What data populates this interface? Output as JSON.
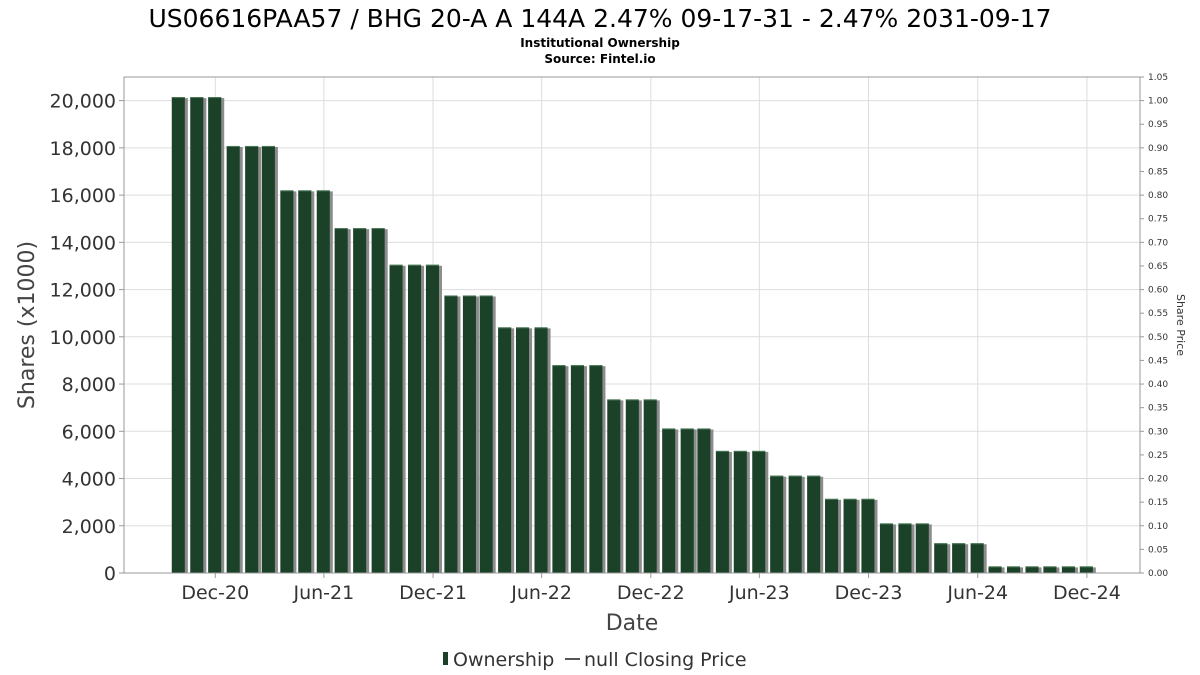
{
  "chart_data": {
    "type": "bar",
    "title": "US06616PAA57 / BHG 20-A A 144A 2.47% 09-17-31 - 2.47% 2031-09-17",
    "subtitle_lines": [
      "Institutional Ownership",
      "Source: Fintel.io"
    ],
    "xlabel": "Date",
    "ylabel": "Shares (x1000)",
    "y2label": "Share Price",
    "ylim": [
      0,
      21000
    ],
    "y2lim": [
      0,
      1.05
    ],
    "yticks": [
      0,
      2000,
      4000,
      6000,
      8000,
      10000,
      12000,
      14000,
      16000,
      18000,
      20000
    ],
    "ytick_labels": [
      "0",
      "2,000",
      "4,000",
      "6,000",
      "8,000",
      "10,000",
      "12,000",
      "14,000",
      "16,000",
      "18,000",
      "20,000"
    ],
    "y2ticks": [
      0,
      0.05,
      0.1,
      0.15,
      0.2,
      0.25,
      0.3,
      0.35,
      0.4,
      0.45,
      0.5,
      0.55,
      0.6,
      0.65,
      0.7,
      0.75,
      0.8,
      0.85,
      0.9,
      0.95,
      1.0,
      1.05
    ],
    "y2tick_labels": [
      "0.00",
      "0.05",
      "0.10",
      "0.15",
      "0.20",
      "0.25",
      "0.30",
      "0.35",
      "0.40",
      "0.45",
      "0.50",
      "0.55",
      "0.60",
      "0.65",
      "0.70",
      "0.75",
      "0.80",
      "0.85",
      "0.90",
      "0.95",
      "1.00",
      "1.05"
    ],
    "xlim": [
      "2020-07-01",
      "2025-02-28"
    ],
    "xticks": [
      {
        "date": "2020-12-01",
        "label": "Dec-20"
      },
      {
        "date": "2021-06-01",
        "label": "Jun-21"
      },
      {
        "date": "2021-12-01",
        "label": "Dec-21"
      },
      {
        "date": "2022-06-01",
        "label": "Jun-22"
      },
      {
        "date": "2022-12-01",
        "label": "Dec-22"
      },
      {
        "date": "2023-06-01",
        "label": "Jun-23"
      },
      {
        "date": "2023-12-01",
        "label": "Dec-23"
      },
      {
        "date": "2024-06-01",
        "label": "Jun-24"
      },
      {
        "date": "2024-12-01",
        "label": "Dec-24"
      }
    ],
    "grid": true,
    "legend_position": "bottom-center",
    "colors": {
      "bar": "#1b4228",
      "bar_shadow": "#8c8c8c",
      "grid": "#dddddd",
      "axis": "#999999"
    },
    "series": [
      {
        "name": "Ownership",
        "x": [
          "2020-09-30",
          "2020-10-31",
          "2020-11-30",
          "2020-12-31",
          "2021-01-31",
          "2021-02-28",
          "2021-03-31",
          "2021-04-30",
          "2021-05-31",
          "2021-06-30",
          "2021-07-31",
          "2021-08-31",
          "2021-09-30",
          "2021-10-31",
          "2021-11-30",
          "2021-12-31",
          "2022-01-31",
          "2022-02-28",
          "2022-03-31",
          "2022-04-30",
          "2022-05-31",
          "2022-06-30",
          "2022-07-31",
          "2022-08-31",
          "2022-09-30",
          "2022-10-31",
          "2022-11-30",
          "2022-12-31",
          "2023-01-31",
          "2023-02-28",
          "2023-03-31",
          "2023-04-30",
          "2023-05-31",
          "2023-06-30",
          "2023-07-31",
          "2023-08-31",
          "2023-09-30",
          "2023-10-31",
          "2023-11-30",
          "2023-12-31",
          "2024-01-31",
          "2024-02-29",
          "2024-03-31",
          "2024-04-30",
          "2024-05-31",
          "2024-06-30",
          "2024-07-31",
          "2024-08-31",
          "2024-09-30",
          "2024-10-31",
          "2024-11-30"
        ],
        "values": [
          20150,
          20150,
          20150,
          18080,
          18080,
          18080,
          16200,
          16200,
          16200,
          14600,
          14600,
          14600,
          13050,
          13050,
          13050,
          11750,
          11750,
          11750,
          10400,
          10400,
          10400,
          8800,
          8800,
          8800,
          7350,
          7350,
          7350,
          6120,
          6120,
          6120,
          5170,
          5170,
          5170,
          4120,
          4120,
          4120,
          3140,
          3140,
          3140,
          2100,
          2100,
          2100,
          1260,
          1260,
          1260,
          280,
          280,
          280,
          280,
          280,
          280
        ]
      }
    ],
    "legend": [
      {
        "label": "Ownership",
        "marker": "bar"
      },
      {
        "label": "null Closing Price",
        "marker": "line"
      }
    ]
  }
}
